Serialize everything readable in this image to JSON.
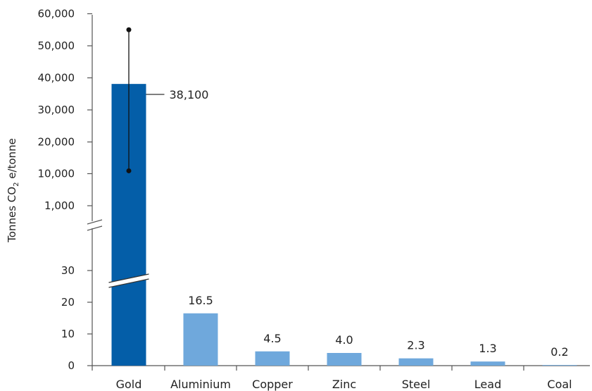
{
  "chart_data": {
    "type": "bar",
    "broken_axis": true,
    "categories": [
      "Gold",
      "Aluminium",
      "Copper",
      "Zinc",
      "Steel",
      "Lead",
      "Coal"
    ],
    "values": [
      38100,
      16.5,
      4.5,
      4.0,
      2.3,
      1.3,
      0.2
    ],
    "value_labels": [
      "38,100",
      "16.5",
      "4.5",
      "4.0",
      "2.3",
      "1.3",
      "0.2"
    ],
    "error_bar": {
      "category": "Gold",
      "low": 11000,
      "high": 55000
    },
    "ylabel": {
      "prefix": "Tonnes CO",
      "subscript": "2",
      "suffix": " e/tonne"
    },
    "y_ticks_lower": [
      "0",
      "10",
      "20",
      "30"
    ],
    "y_ticks_upper": [
      "1,000",
      "10,000",
      "20,000",
      "30,000",
      "40,000",
      "50,000",
      "60,000"
    ],
    "colors": {
      "highlight": "#045ea8",
      "default": "#6fa8dc",
      "axis": "#555555",
      "text": "#222222"
    }
  }
}
